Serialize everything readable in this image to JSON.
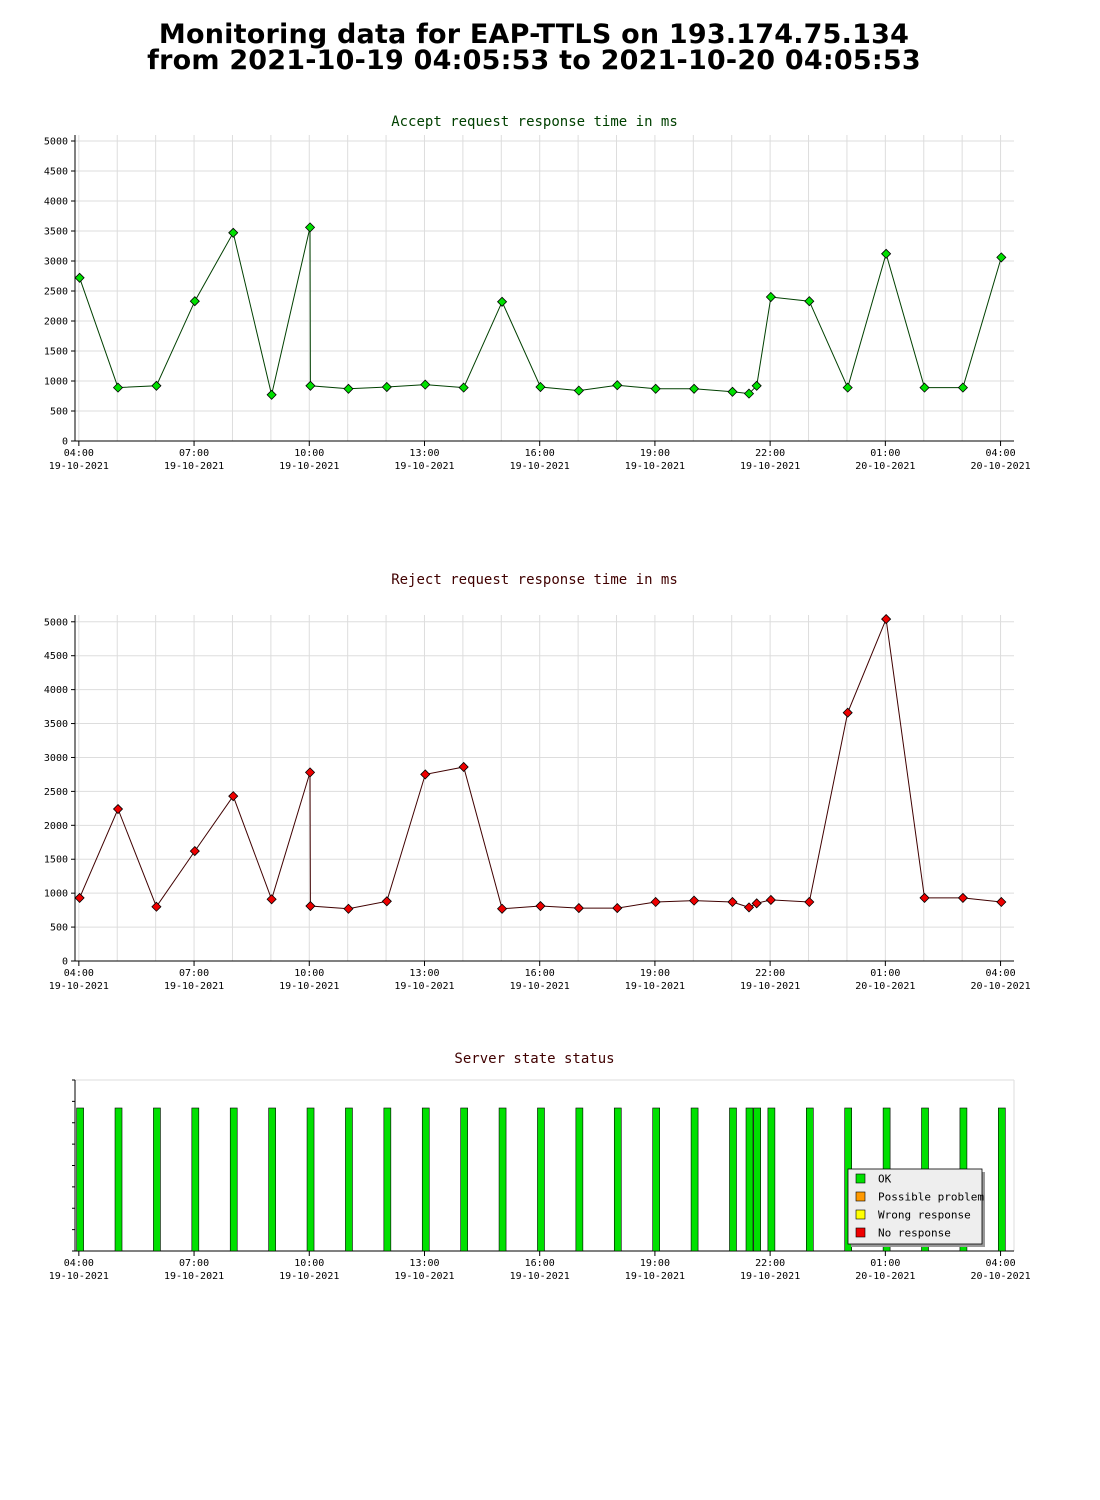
{
  "page": {
    "title_line1": "Monitoring data for EAP-TTLS on 193.174.75.134",
    "title_line2": "from 2021-10-19 04:05:53 to 2021-10-20 04:05:53"
  },
  "x_ticks": [
    {
      "time": "04:00",
      "date": "19-10-2021",
      "hour": 4
    },
    {
      "time": "07:00",
      "date": "19-10-2021",
      "hour": 7
    },
    {
      "time": "10:00",
      "date": "19-10-2021",
      "hour": 10
    },
    {
      "time": "13:00",
      "date": "19-10-2021",
      "hour": 13
    },
    {
      "time": "16:00",
      "date": "19-10-2021",
      "hour": 16
    },
    {
      "time": "19:00",
      "date": "19-10-2021",
      "hour": 19
    },
    {
      "time": "22:00",
      "date": "19-10-2021",
      "hour": 22
    },
    {
      "time": "01:00",
      "date": "20-10-2021",
      "hour": 25
    },
    {
      "time": "04:00",
      "date": "20-10-2021",
      "hour": 28
    }
  ],
  "chart_data": [
    {
      "type": "line",
      "title": "Accept request response time in ms",
      "title_color": "#004000",
      "xlabel": "",
      "ylabel": "",
      "xlim_hours": [
        3.9,
        28.35
      ],
      "ylim": [
        0,
        5100
      ],
      "yticks": [
        0,
        500,
        1000,
        1500,
        2000,
        2500,
        3000,
        3500,
        4000,
        4500,
        5000
      ],
      "grid": true,
      "line_color": "#004000",
      "marker_color": "#00e000",
      "x_hours": [
        4.02,
        5.02,
        6.02,
        7.02,
        8.02,
        9.02,
        10.02,
        10.03,
        11.02,
        12.02,
        13.02,
        14.02,
        15.02,
        16.02,
        17.02,
        18.02,
        19.02,
        20.02,
        21.02,
        21.45,
        21.65,
        22.02,
        23.02,
        24.02,
        25.02,
        26.02,
        27.02,
        28.02
      ],
      "values": [
        2720,
        890,
        920,
        2330,
        3470,
        770,
        3560,
        920,
        870,
        900,
        940,
        890,
        2320,
        900,
        840,
        930,
        870,
        870,
        820,
        790,
        920,
        2400,
        2330,
        890,
        3120,
        890,
        890,
        3060
      ]
    },
    {
      "type": "line",
      "title": "Reject request response time in ms",
      "title_color": "#400000",
      "xlabel": "",
      "ylabel": "",
      "xlim_hours": [
        3.9,
        28.35
      ],
      "ylim": [
        0,
        5100
      ],
      "yticks": [
        0,
        500,
        1000,
        1500,
        2000,
        2500,
        3000,
        3500,
        4000,
        4500,
        5000
      ],
      "grid": true,
      "line_color": "#400000",
      "marker_color": "#ee0000",
      "x_hours": [
        4.02,
        5.02,
        6.02,
        7.02,
        8.02,
        9.02,
        10.02,
        10.03,
        11.02,
        12.02,
        13.02,
        14.02,
        15.02,
        16.02,
        17.02,
        18.02,
        19.02,
        20.02,
        21.02,
        21.45,
        21.65,
        22.02,
        23.02,
        24.02,
        25.02,
        26.02,
        27.02,
        28.02
      ],
      "values": [
        930,
        2240,
        800,
        1620,
        2430,
        910,
        2780,
        810,
        770,
        880,
        2750,
        2860,
        770,
        810,
        780,
        780,
        870,
        890,
        870,
        790,
        850,
        900,
        870,
        3660,
        5040,
        930,
        930,
        870
      ]
    },
    {
      "type": "bar",
      "title": "Server state status",
      "title_color": "#400000",
      "xlabel": "",
      "ylabel": "",
      "xlim_hours": [
        3.9,
        28.35
      ],
      "grid": false,
      "legend_placement": "bottom-right",
      "legend": [
        {
          "label": "OK",
          "color": "#00e000"
        },
        {
          "label": "Possible problem",
          "color": "#ff9900"
        },
        {
          "label": "Wrong response",
          "color": "#ffff00"
        },
        {
          "label": "No response",
          "color": "#ee0000"
        }
      ],
      "x_hours": [
        4.02,
        5.02,
        6.02,
        7.02,
        8.02,
        9.02,
        10.02,
        11.02,
        12.02,
        13.02,
        14.02,
        15.02,
        16.02,
        17.02,
        18.02,
        19.02,
        20.02,
        21.02,
        21.45,
        21.65,
        22.02,
        23.02,
        24.02,
        25.02,
        26.02,
        27.02,
        28.02
      ],
      "states": [
        "OK",
        "OK",
        "OK",
        "OK",
        "OK",
        "OK",
        "OK",
        "OK",
        "OK",
        "OK",
        "OK",
        "OK",
        "OK",
        "OK",
        "OK",
        "OK",
        "OK",
        "OK",
        "OK",
        "OK",
        "OK",
        "OK",
        "OK",
        "OK",
        "OK",
        "OK",
        "OK"
      ]
    }
  ]
}
